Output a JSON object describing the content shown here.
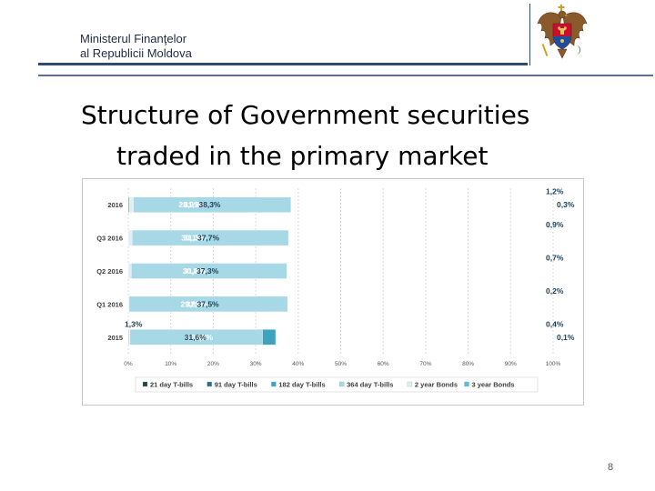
{
  "header": {
    "ministry_line1": "Ministerul Finanţelor",
    "ministry_line2": "al Republicii Moldova"
  },
  "emblem": {
    "icon": "moldova-coat-of-arms-icon"
  },
  "slide": {
    "title_line1": "Structure of Government securities",
    "title_line2": "traded in the primary market",
    "page_number": "8"
  },
  "chart_data": {
    "type": "bar",
    "orientation": "horizontal",
    "stacked": "percent",
    "categories": [
      "2016",
      "Q3 2016",
      "Q2 2016",
      "Q1 2016",
      "2015"
    ],
    "series": [
      {
        "name": "21 day T-bills",
        "color": "#1f3f57",
        "values": [
          0,
          0,
          0,
          0,
          1.3
        ]
      },
      {
        "name": "91 day T-bills",
        "color": "#2e6b85",
        "values": [
          28.9,
          30.1,
          31.2,
          32.4,
          31.9
        ]
      },
      {
        "name": "182 day T-bills",
        "color": "#3fa2bf",
        "values": [
          31.3,
          31.3,
          30.8,
          29.8,
          34.7
        ]
      },
      {
        "name": "364 day T-bills",
        "color": "#a6d8e6",
        "values": [
          38.3,
          37.7,
          37.3,
          37.5,
          31.6
        ]
      },
      {
        "name": "2 year Bonds",
        "color": "#e2eef3",
        "values": [
          1.2,
          0.9,
          0.7,
          0.2,
          0.4
        ]
      },
      {
        "name": "3 year Bonds",
        "color": "#55c1db",
        "values": [
          0.3,
          0,
          0,
          0,
          0.1
        ]
      }
    ],
    "data_labels": [
      [
        "",
        "28,9%",
        "31,3%",
        "38,3%",
        "1,2%",
        "0,3%"
      ],
      [
        "",
        "30,1%",
        "31,3%",
        "37,7%",
        "0,9%",
        ""
      ],
      [
        "",
        "31,2%",
        "30,8%",
        "37,3%",
        "0,7%",
        ""
      ],
      [
        "",
        "32,4%",
        "29,8%",
        "37,5%",
        "0,2%",
        ""
      ],
      [
        "1,3%",
        "31,9%",
        "34,7%",
        "31,6%",
        "0,4%",
        "0,1%"
      ]
    ],
    "xticks": [
      "0%",
      "10%",
      "20%",
      "30%",
      "40%",
      "50%",
      "60%",
      "70%",
      "80%",
      "90%",
      "100%"
    ],
    "xlim": [
      0,
      100
    ],
    "grid": true,
    "legend_position": "bottom",
    "title": "",
    "xlabel": "",
    "ylabel": ""
  }
}
